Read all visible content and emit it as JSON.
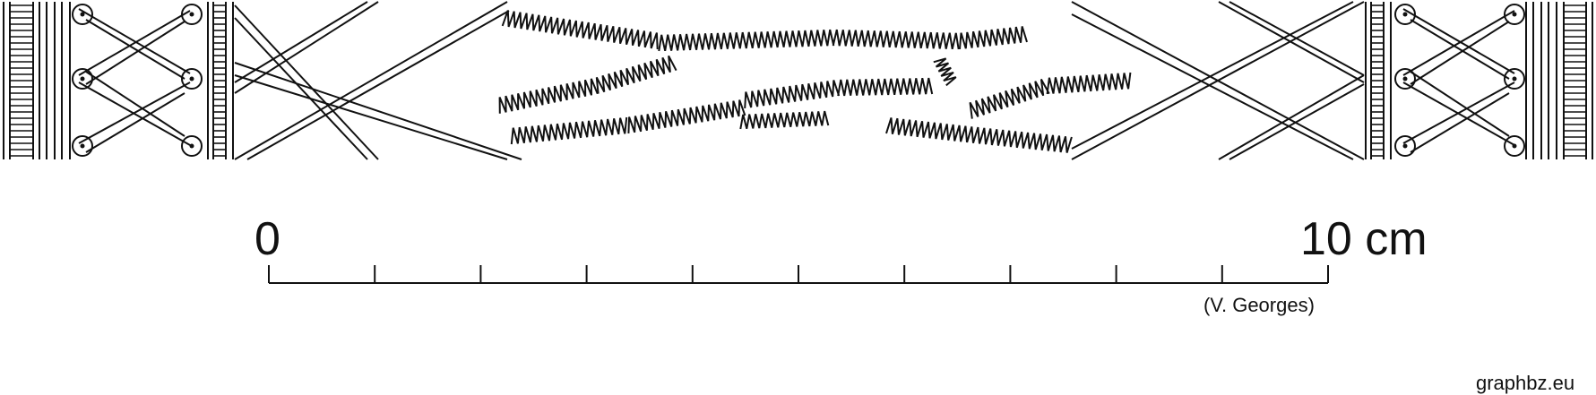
{
  "colors": {
    "ink": "#111111",
    "background": "#ffffff"
  },
  "scale_bar": {
    "start_label": "0",
    "end_label": "10 cm",
    "divisions": 10,
    "credit": "(V. Georges)"
  },
  "watermark": {
    "site": "graphbz.eu"
  },
  "pattern": {
    "name": "woven-braid-band",
    "icons": [
      "pulley-icon",
      "crossed-strands",
      "zigzag-threads",
      "ladder-edge"
    ]
  }
}
